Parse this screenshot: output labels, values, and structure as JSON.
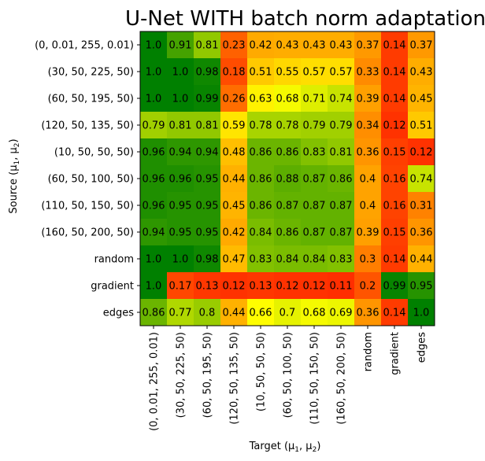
{
  "chart_data": {
    "type": "heatmap",
    "title": "U-Net WITH batch norm adaptation",
    "xlabel": "Target (μ",
    "ylabel": "Source (μ",
    "rows": [
      "(0, 0.01, 255, 0.01)",
      "(30, 50, 225, 50)",
      "(60, 50, 195, 50)",
      "(120, 50, 135, 50)",
      "(10, 50, 50, 50)",
      "(60, 50, 100, 50)",
      "(110, 50, 150, 50)",
      "(160, 50, 200, 50)",
      "random",
      "gradient",
      "edges"
    ],
    "columns": [
      "(0, 0.01, 255, 0.01)",
      "(30, 50, 225, 50)",
      "(60, 50, 195, 50)",
      "(120, 50, 135, 50)",
      "(10, 50, 50, 50)",
      "(60, 50, 100, 50)",
      "(110, 50, 150, 50)",
      "(160, 50, 200, 50)",
      "random",
      "gradient",
      "edges"
    ],
    "values": [
      [
        1.0,
        0.91,
        0.81,
        0.23,
        0.42,
        0.43,
        0.43,
        0.43,
        0.37,
        0.14,
        0.37
      ],
      [
        1.0,
        1.0,
        0.98,
        0.18,
        0.51,
        0.55,
        0.57,
        0.57,
        0.33,
        0.14,
        0.43
      ],
      [
        1.0,
        1.0,
        0.99,
        0.26,
        0.63,
        0.68,
        0.71,
        0.74,
        0.39,
        0.14,
        0.45
      ],
      [
        0.79,
        0.81,
        0.81,
        0.59,
        0.78,
        0.78,
        0.79,
        0.79,
        0.34,
        0.12,
        0.51
      ],
      [
        0.96,
        0.94,
        0.94,
        0.48,
        0.86,
        0.86,
        0.83,
        0.81,
        0.36,
        0.15,
        0.12
      ],
      [
        0.96,
        0.96,
        0.95,
        0.44,
        0.86,
        0.88,
        0.87,
        0.86,
        0.4,
        0.16,
        0.74
      ],
      [
        0.96,
        0.95,
        0.95,
        0.45,
        0.86,
        0.87,
        0.87,
        0.87,
        0.4,
        0.16,
        0.31
      ],
      [
        0.94,
        0.95,
        0.95,
        0.42,
        0.84,
        0.86,
        0.87,
        0.87,
        0.39,
        0.15,
        0.36
      ],
      [
        1.0,
        1.0,
        0.98,
        0.47,
        0.83,
        0.84,
        0.84,
        0.83,
        0.3,
        0.14,
        0.44
      ],
      [
        1.0,
        0.17,
        0.13,
        0.12,
        0.13,
        0.12,
        0.12,
        0.11,
        0.2,
        0.99,
        0.95
      ],
      [
        0.86,
        0.77,
        0.8,
        0.44,
        0.66,
        0.7,
        0.68,
        0.69,
        0.36,
        0.14,
        1.0
      ]
    ],
    "value_labels": [
      [
        "1.0",
        "0.91",
        "0.81",
        "0.23",
        "0.42",
        "0.43",
        "0.43",
        "0.43",
        "0.37",
        "0.14",
        "0.37"
      ],
      [
        "1.0",
        "1.0",
        "0.98",
        "0.18",
        "0.51",
        "0.55",
        "0.57",
        "0.57",
        "0.33",
        "0.14",
        "0.43"
      ],
      [
        "1.0",
        "1.0",
        "0.99",
        "0.26",
        "0.63",
        "0.68",
        "0.71",
        "0.74",
        "0.39",
        "0.14",
        "0.45"
      ],
      [
        "0.79",
        "0.81",
        "0.81",
        "0.59",
        "0.78",
        "0.78",
        "0.79",
        "0.79",
        "0.34",
        "0.12",
        "0.51"
      ],
      [
        "0.96",
        "0.94",
        "0.94",
        "0.48",
        "0.86",
        "0.86",
        "0.83",
        "0.81",
        "0.36",
        "0.15",
        "0.12"
      ],
      [
        "0.96",
        "0.96",
        "0.95",
        "0.44",
        "0.86",
        "0.88",
        "0.87",
        "0.86",
        "0.4",
        "0.16",
        "0.74"
      ],
      [
        "0.96",
        "0.95",
        "0.95",
        "0.45",
        "0.86",
        "0.87",
        "0.87",
        "0.87",
        "0.4",
        "0.16",
        "0.31"
      ],
      [
        "0.94",
        "0.95",
        "0.95",
        "0.42",
        "0.84",
        "0.86",
        "0.87",
        "0.87",
        "0.39",
        "0.15",
        "0.36"
      ],
      [
        "1.0",
        "1.0",
        "0.98",
        "0.47",
        "0.83",
        "0.84",
        "0.84",
        "0.83",
        "0.3",
        "0.14",
        "0.44"
      ],
      [
        "1.0",
        "0.17",
        "0.13",
        "0.12",
        "0.13",
        "0.12",
        "0.12",
        "0.11",
        "0.2",
        "0.99",
        "0.95"
      ],
      [
        "0.86",
        "0.77",
        "0.8",
        "0.44",
        "0.66",
        "0.7",
        "0.68",
        "0.69",
        "0.36",
        "0.14",
        "1.0"
      ]
    ],
    "colormap": [
      "#ff0000",
      "#ff8c00",
      "#ffff00",
      "#008000"
    ],
    "vlim": [
      0,
      1
    ],
    "grid": false,
    "legend": "none"
  }
}
